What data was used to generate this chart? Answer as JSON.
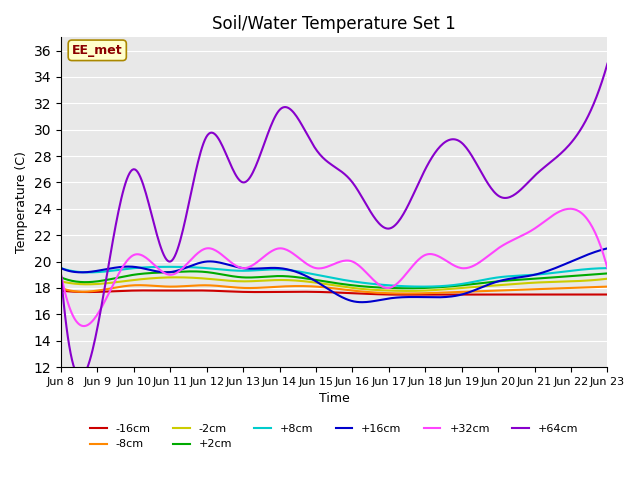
{
  "title": "Soil/Water Temperature Set 1",
  "xlabel": "Time",
  "ylabel": "Temperature (C)",
  "ylim": [
    12,
    37
  ],
  "yticks": [
    12,
    14,
    16,
    18,
    20,
    22,
    24,
    26,
    28,
    30,
    32,
    34,
    36
  ],
  "bg_color": "#e8e8e8",
  "annotation_text": "EE_met",
  "annotation_color": "#8b0000",
  "annotation_bg": "#ffffcc",
  "series": {
    "-16cm": {
      "color": "#cc0000",
      "linewidth": 1.5
    },
    "-8cm": {
      "color": "#ff8800",
      "linewidth": 1.5
    },
    "-2cm": {
      "color": "#cccc00",
      "linewidth": 1.5
    },
    "+2cm": {
      "color": "#00aa00",
      "linewidth": 1.5
    },
    "+8cm": {
      "color": "#00cccc",
      "linewidth": 1.5
    },
    "+16cm": {
      "color": "#0000cc",
      "linewidth": 1.5
    },
    "+32cm": {
      "color": "#ff44ff",
      "linewidth": 1.5
    },
    "+64cm": {
      "color": "#8800cc",
      "linewidth": 1.5
    }
  },
  "x_labels": [
    "Jun 8",
    "Jun 9",
    "Jun 10",
    "Jun 11",
    "Jun 12",
    "Jun 13",
    "Jun 14",
    "Jun 15",
    "Jun 16",
    "Jun 17",
    "Jun 18",
    "Jun 19",
    "Jun 20",
    "Jun 21",
    "Jun 22",
    "Jun 23"
  ],
  "n_points": 16,
  "seed": 42
}
